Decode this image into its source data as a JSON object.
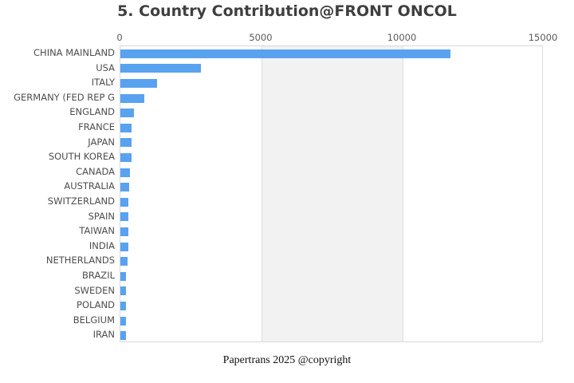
{
  "title": "5. Country Contribution@FRONT ONCOL",
  "footer": "Papertrans 2025 @copyright",
  "colors": {
    "bar": "#59a2f0",
    "plot_border": "#d9d9d9",
    "grid_line": "#e0e0e0",
    "split_band": "#f2f2f2",
    "title_text": "#3f3f3f",
    "axis_label_text": "#4d4d4d",
    "tick_text": "#595959",
    "background": "#ffffff"
  },
  "chart_data": {
    "type": "bar",
    "orientation": "horizontal",
    "title": "5. Country Contribution@FRONT ONCOL",
    "xlabel": "",
    "ylabel": "",
    "xlim": [
      0,
      15000
    ],
    "x_ticks": [
      0,
      5000,
      10000,
      15000
    ],
    "x_tick_labels": [
      "0",
      "5000",
      "10000",
      "15000"
    ],
    "ticks_position": "top",
    "legend": "none",
    "grid": "vertical lines at ticks, alternating split band 5000-10000 shaded",
    "bar_color": "#59a2f0",
    "categories": [
      "CHINA MAINLAND",
      "USA",
      "ITALY",
      "GERMANY (FED REP G",
      "ENGLAND",
      "FRANCE",
      "JAPAN",
      "SOUTH KOREA",
      "CANADA",
      "AUSTRALIA",
      "SWITZERLAND",
      "SPAIN",
      "TAIWAN",
      "INDIA",
      "NETHERLANDS",
      "BRAZIL",
      "SWEDEN",
      "POLAND",
      "BELGIUM",
      "IRAN"
    ],
    "values": [
      11700,
      2850,
      1300,
      850,
      480,
      400,
      400,
      395,
      330,
      310,
      295,
      290,
      285,
      283,
      255,
      210,
      205,
      200,
      198,
      195
    ]
  }
}
